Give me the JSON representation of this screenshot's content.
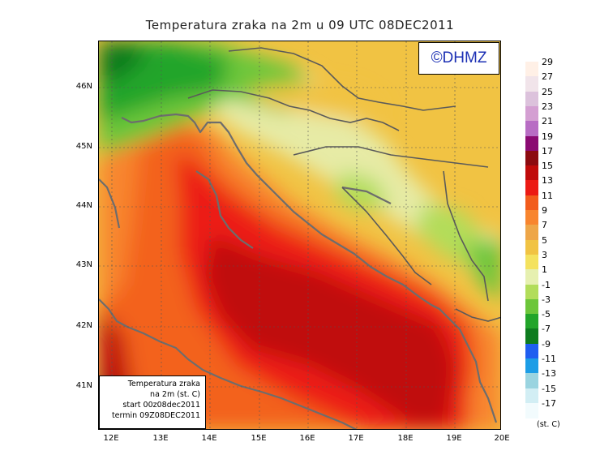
{
  "title": "Temperatura zraka na 2m u 09 UTC 08DEC2011",
  "watermark": "©DHMZ",
  "info_box": {
    "line1": "Temperatura zraka",
    "line2": "na 2m (st. C)",
    "line3": "start 00z08dec2011",
    "line4": "termin 09Z08DEC2011"
  },
  "lat_labels": [
    "46N",
    "45N",
    "44N",
    "43N",
    "42N",
    "41N"
  ],
  "lon_labels": [
    "12E",
    "13E",
    "14E",
    "15E",
    "16E",
    "17E",
    "18E",
    "19E",
    "20E"
  ],
  "legend": {
    "labels": [
      "29",
      "27",
      "25",
      "23",
      "21",
      "19",
      "17",
      "15",
      "13",
      "11",
      "9",
      "7",
      "5",
      "3",
      "1",
      "-1",
      "-3",
      "-5",
      "-7",
      "-9",
      "-11",
      "-13",
      "-15",
      "-17"
    ],
    "colors": [
      "#fff0e6",
      "#f1e4ea",
      "#dcc2dc",
      "#d49fd2",
      "#b86dc4",
      "#8b0a72",
      "#8c0a10",
      "#c00a0a",
      "#ec1a14",
      "#f25c1c",
      "#f8852e",
      "#eea648",
      "#f1c343",
      "#f4e25e",
      "#e6f0b0",
      "#b2dd5a",
      "#6cc63a",
      "#22a52a",
      "#0e7c1f",
      "#1f5ef0",
      "#1c9de6",
      "#9ad4e0",
      "#d2eef4",
      "#f2fbfd"
    ],
    "unit": "(st. C)"
  }
}
